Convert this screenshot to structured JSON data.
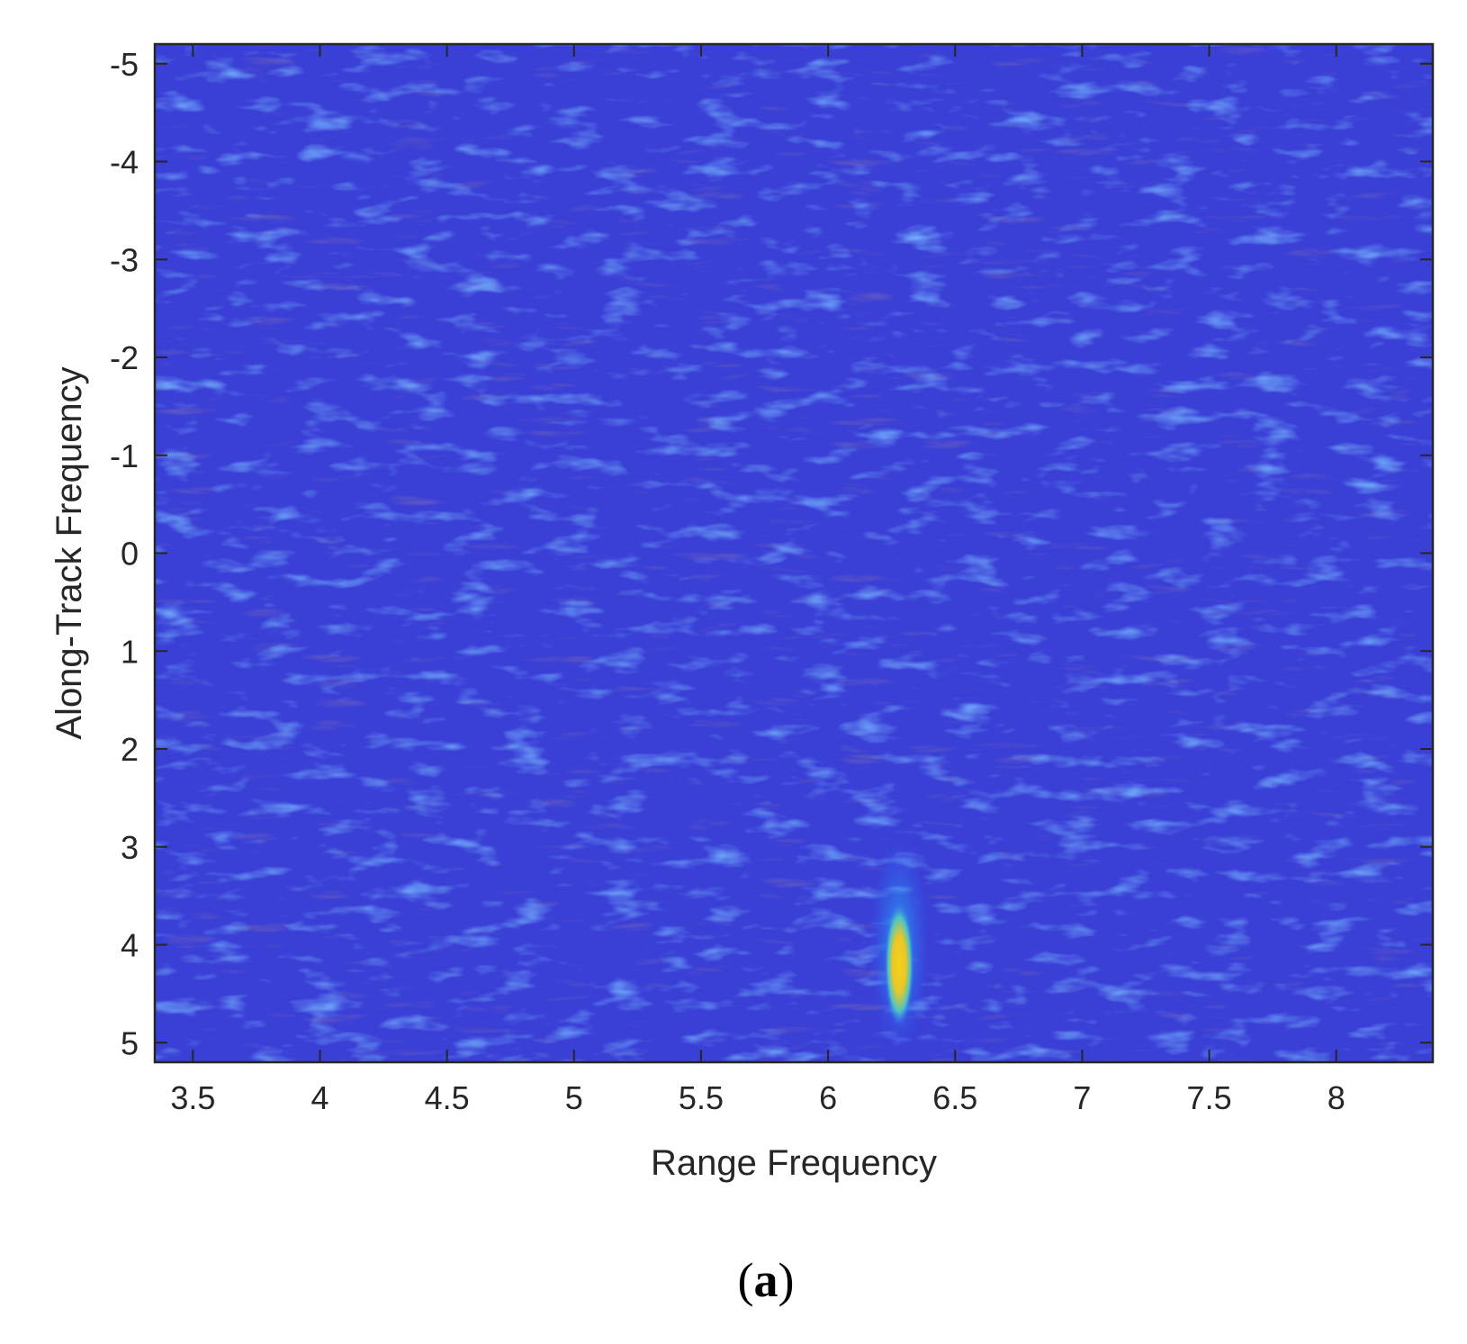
{
  "chart_data": {
    "type": "heatmap",
    "title": "",
    "xlabel": "Range Frequency",
    "ylabel": "Along-Track Frequency",
    "xlim": [
      3.35,
      8.38
    ],
    "ylim": [
      -5.2,
      5.2
    ],
    "y_reversed": true,
    "x_ticks": [
      {
        "value": 3.5,
        "label": "3.5"
      },
      {
        "value": 4,
        "label": "4"
      },
      {
        "value": 4.5,
        "label": "4.5"
      },
      {
        "value": 5,
        "label": "5"
      },
      {
        "value": 5.5,
        "label": "5.5"
      },
      {
        "value": 6,
        "label": "6"
      },
      {
        "value": 6.5,
        "label": "6.5"
      },
      {
        "value": 7,
        "label": "7"
      },
      {
        "value": 7.5,
        "label": "7.5"
      },
      {
        "value": 8,
        "label": "8"
      }
    ],
    "y_ticks": [
      {
        "value": -5,
        "label": "-5"
      },
      {
        "value": -4,
        "label": "-4"
      },
      {
        "value": -3,
        "label": "-3"
      },
      {
        "value": -2,
        "label": "-2"
      },
      {
        "value": -1,
        "label": "-1"
      },
      {
        "value": 0,
        "label": "0"
      },
      {
        "value": 1,
        "label": "1"
      },
      {
        "value": 2,
        "label": "2"
      },
      {
        "value": 3,
        "label": "3"
      },
      {
        "value": 4,
        "label": "4"
      },
      {
        "value": 5,
        "label": "5"
      }
    ],
    "colormap": [
      "#3b2fd8",
      "#2f6bff",
      "#1fa8f0",
      "#27d0b4",
      "#a8d83a",
      "#f4d51f"
    ],
    "background_level_color": "#3a3fd6",
    "peak": {
      "x": 6.28,
      "y": 4.2,
      "x_extent": [
        6.22,
        6.35
      ],
      "y_extent": [
        3.0,
        5.0
      ]
    },
    "grid": false,
    "legend": "none"
  },
  "panel_label": {
    "open": "(",
    "letter": "a",
    "close": ")"
  }
}
